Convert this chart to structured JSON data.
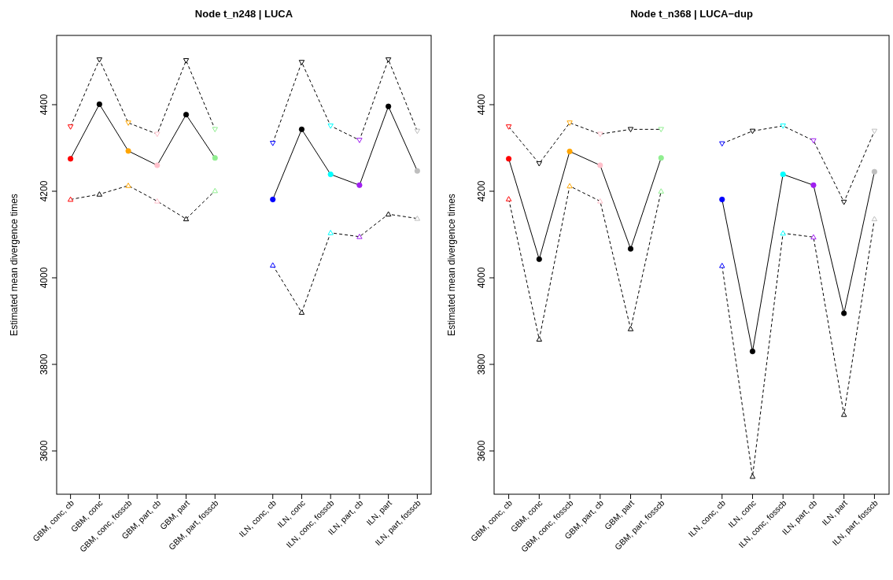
{
  "chart_data": [
    {
      "type": "line",
      "title": "Node t_n248 | LUCA",
      "ylabel": "Estimated mean divergence times",
      "categories": [
        "GBM, conc, cb",
        "GBM, conc",
        "GBM, conc, fosscb",
        "GBM, part, cb",
        "GBM, part",
        "GBM, part, fosscb",
        null,
        "ILN, conc, cb",
        "ILN, conc",
        "ILN, conc, fosscb",
        "ILN, part, cb",
        "ILN, part",
        "ILN, part, fosscb"
      ],
      "ylim": [
        3500,
        4560
      ],
      "yticks": [
        3600,
        3800,
        4000,
        4200,
        4400
      ],
      "grid": false,
      "series": [
        {
          "color": "#000000",
          "line_style": "dashed",
          "marker": "triangle-down",
          "colors": [
            "#ff0000",
            "#000000",
            "#ffa500",
            "#ffc0cb",
            "#000000",
            "#90ee90",
            null,
            "#0000ff",
            "#000000",
            "#00ffff",
            "#a020f0",
            "#000000",
            "#bebebe"
          ],
          "values": [
            4349,
            4504,
            4358,
            4332,
            4502,
            4343,
            null,
            4311,
            4498,
            4351,
            4318,
            4504,
            4339
          ]
        },
        {
          "color": "#000000",
          "line_style": "solid",
          "marker": "circle",
          "colors": [
            "#ff0000",
            "#000000",
            "#ffa500",
            "#ffc0cb",
            "#000000",
            "#90ee90",
            null,
            "#0000ff",
            "#000000",
            "#00ffff",
            "#a020f0",
            "#000000",
            "#bebebe"
          ],
          "values": [
            4275,
            4401,
            4293,
            4260,
            4377,
            4277,
            null,
            4181,
            4343,
            4239,
            4214,
            4396,
            4247
          ]
        },
        {
          "color": "#000000",
          "line_style": "dashed",
          "marker": "triangle",
          "colors": [
            "#ff0000",
            "#000000",
            "#ffa500",
            "#ffc0cb",
            "#000000",
            "#90ee90",
            null,
            "#0000ff",
            "#000000",
            "#00ffff",
            "#a020f0",
            "#000000",
            "#bebebe"
          ],
          "values": [
            4181,
            4193,
            4213,
            4177,
            4136,
            4201,
            null,
            4029,
            3920,
            4104,
            4095,
            4147,
            4137
          ]
        }
      ]
    },
    {
      "type": "line",
      "title": "Node t_n368 | LUCA−dup",
      "ylabel": "Estimated mean divergence times",
      "categories": [
        "GBM, conc, cb",
        "GBM, conc",
        "GBM, conc, fosscb",
        "GBM, part, cb",
        "GBM, part",
        "GBM, part, fosscb",
        null,
        "ILN, conc, cb",
        "ILN, conc",
        "ILN, conc, fosscb",
        "ILN, part, cb",
        "ILN, part",
        "ILN, part, fosscb"
      ],
      "ylim": [
        3500,
        4560
      ],
      "yticks": [
        3600,
        3800,
        4000,
        4200,
        4400
      ],
      "grid": false,
      "series": [
        {
          "color": "#000000",
          "line_style": "dashed",
          "marker": "triangle-down",
          "colors": [
            "#ff0000",
            "#000000",
            "#ffa500",
            "#ffc0cb",
            "#000000",
            "#90ee90",
            null,
            "#0000ff",
            "#000000",
            "#00ffff",
            "#a020f0",
            "#000000",
            "#bebebe"
          ],
          "values": [
            4349,
            4264,
            4358,
            4332,
            4343,
            4343,
            null,
            4310,
            4339,
            4351,
            4317,
            4175,
            4339
          ]
        },
        {
          "color": "#000000",
          "line_style": "solid",
          "marker": "circle",
          "colors": [
            "#ff0000",
            "#000000",
            "#ffa500",
            "#ffc0cb",
            "#000000",
            "#90ee90",
            null,
            "#0000ff",
            "#000000",
            "#00ffff",
            "#a020f0",
            "#000000",
            "#bebebe"
          ],
          "values": [
            4275,
            4043,
            4292,
            4260,
            4067,
            4277,
            null,
            4181,
            3830,
            4239,
            4214,
            3918,
            4245
          ]
        },
        {
          "color": "#000000",
          "line_style": "dashed",
          "marker": "triangle",
          "colors": [
            "#ff0000",
            "#000000",
            "#ffa500",
            "#ffc0cb",
            "#000000",
            "#90ee90",
            null,
            "#0000ff",
            "#000000",
            "#00ffff",
            "#a020f0",
            "#000000",
            "#bebebe"
          ],
          "values": [
            4182,
            3858,
            4212,
            4177,
            3882,
            4200,
            null,
            4028,
            3541,
            4103,
            4094,
            3684,
            4136
          ]
        }
      ]
    }
  ]
}
